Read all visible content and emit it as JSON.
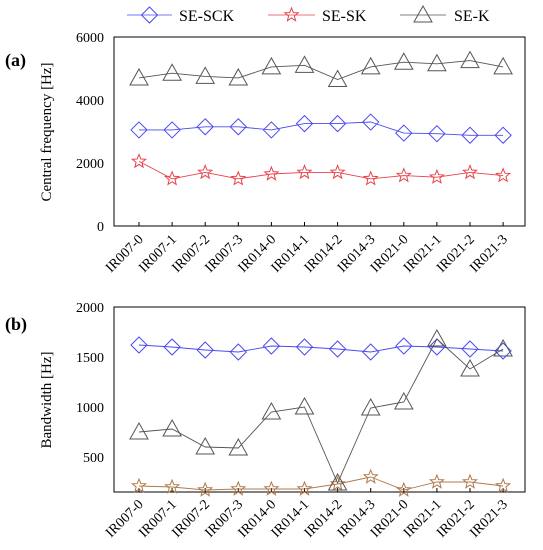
{
  "legend": [
    {
      "name": "SE-SCK",
      "color": "#4a4af0",
      "marker": "diamond"
    },
    {
      "name": "SE-SK",
      "color": "#e8424a",
      "marker": "star"
    },
    {
      "name": "SE-K",
      "color": "#555555",
      "marker": "triangle"
    }
  ],
  "chart_data": [
    {
      "type": "line",
      "panel_label": "(a)",
      "ylabel": "Central frequency [Hz]",
      "xlabel": "",
      "categories": [
        "IR007-0",
        "IR007-1",
        "IR007-2",
        "IR007-3",
        "IR014-0",
        "IR014-1",
        "IR014-2",
        "IR014-3",
        "IR021-0",
        "IR021-1",
        "IR021-2",
        "IR021-3"
      ],
      "ylim": [
        0,
        6000
      ],
      "yticks": [
        "0",
        "2000",
        "4000",
        "6000"
      ],
      "grid": false,
      "legend_position": "top",
      "series": [
        {
          "name": "SE-SCK",
          "color": "#4a4af0",
          "marker": "diamond",
          "values": [
            3050,
            3050,
            3150,
            3150,
            3050,
            3250,
            3250,
            3300,
            2950,
            2930,
            2880,
            2880
          ]
        },
        {
          "name": "SE-SK",
          "color": "#e8424a",
          "marker": "star",
          "values": [
            2050,
            1500,
            1700,
            1500,
            1650,
            1700,
            1700,
            1500,
            1600,
            1550,
            1700,
            1600
          ]
        },
        {
          "name": "SE-K",
          "color": "#555555",
          "marker": "triangle",
          "values": [
            4700,
            4850,
            4750,
            4700,
            5050,
            5100,
            4650,
            5050,
            5200,
            5150,
            5250,
            5050
          ]
        }
      ]
    },
    {
      "type": "line",
      "panel_label": "(b)",
      "ylabel": "Bandwidth [Hz]",
      "xlabel": "",
      "categories": [
        "IR007-0",
        "IR007-1",
        "IR007-2",
        "IR007-3",
        "IR014-0",
        "IR014-1",
        "IR014-2",
        "IR014-3",
        "IR021-0",
        "IR021-1",
        "IR021-2",
        "IR021-3"
      ],
      "ylim": [
        150,
        2000
      ],
      "yticks": [
        "500",
        "1000",
        "1500",
        "2000"
      ],
      "grid": false,
      "legend_position": "top",
      "series": [
        {
          "name": "SE-SCK",
          "color": "#4a4af0",
          "marker": "diamond",
          "values": [
            1620,
            1600,
            1570,
            1550,
            1610,
            1600,
            1580,
            1550,
            1610,
            1600,
            1580,
            1560
          ]
        },
        {
          "name": "SE-SK",
          "color": "#b07a4a",
          "marker": "star",
          "values": [
            210,
            200,
            170,
            180,
            180,
            180,
            230,
            300,
            170,
            250,
            250,
            210
          ]
        },
        {
          "name": "SE-K",
          "color": "#555555",
          "marker": "triangle",
          "values": [
            750,
            780,
            600,
            590,
            950,
            1000,
            240,
            990,
            1050,
            1680,
            1380,
            1580
          ]
        }
      ]
    }
  ]
}
